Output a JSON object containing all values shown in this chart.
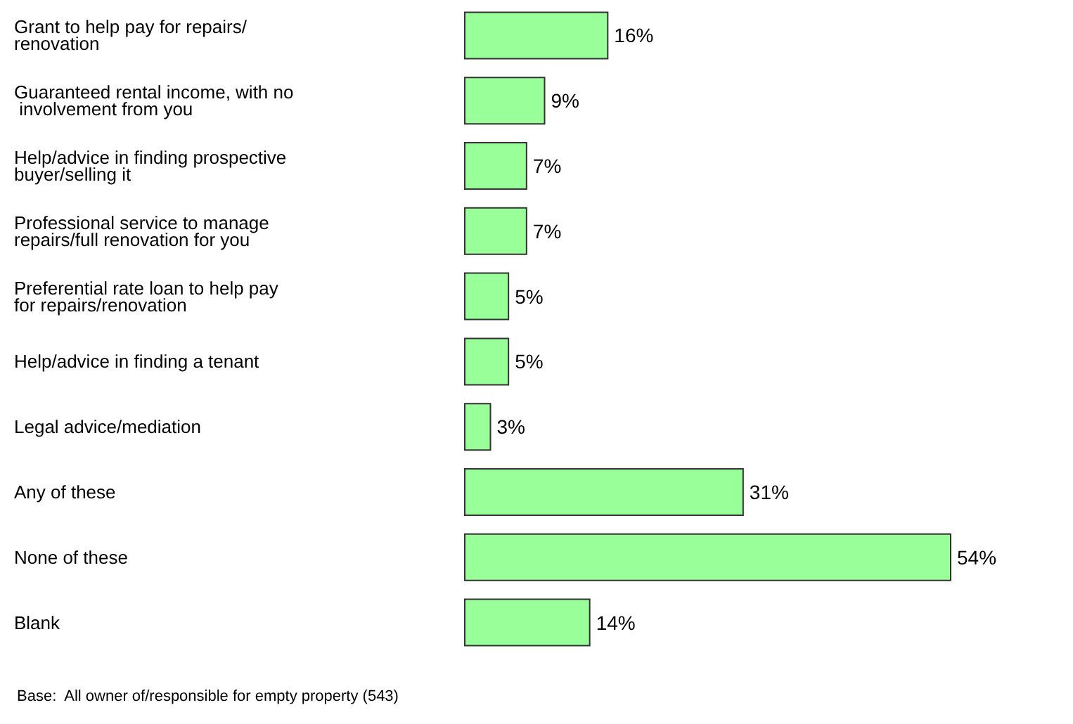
{
  "chart_data": {
    "type": "bar",
    "orientation": "horizontal",
    "categories": [
      "Grant to help pay for repairs/renovation",
      "Guaranteed rental income, with no involvement from you",
      "Help/advice in finding prospective buyer/selling it",
      "Professional service to manage repairs/full renovation for you",
      "Preferential rate loan to help pay for repairs/renovation",
      "Help/advice in finding a tenant",
      "Legal advice/mediation",
      "Any of these",
      "None of these",
      "Blank"
    ],
    "values": [
      16,
      9,
      7,
      7,
      5,
      5,
      3,
      31,
      54,
      14
    ],
    "value_labels": [
      "16%",
      "9%",
      "7%",
      "7%",
      "5%",
      "5%",
      "3%",
      "31%",
      "54%",
      "14%"
    ],
    "color": "#99ff99",
    "annotations": [
      "Base:  All owner of/responsible for empty property (543)"
    ]
  }
}
